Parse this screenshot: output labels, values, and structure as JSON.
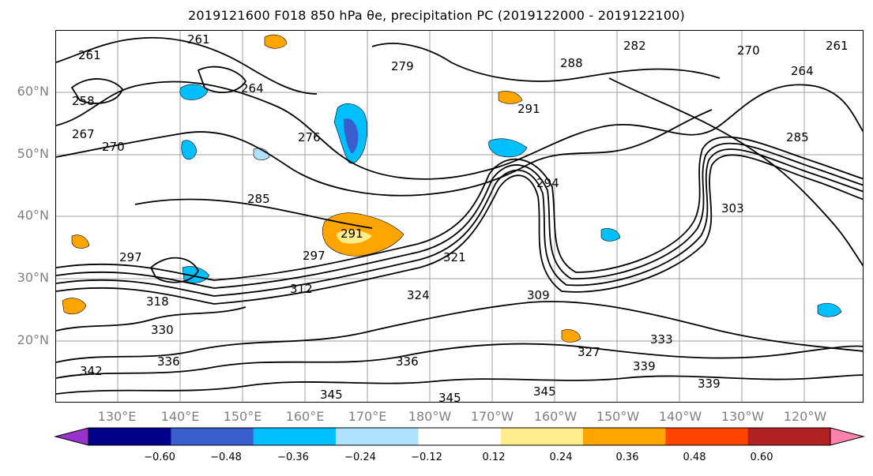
{
  "title": "2019121600 F018 850 hPa θe, precipitation PC (2019122000 - 2019122100)",
  "latitude_labels": [
    "60°N",
    "50°N",
    "40°N",
    "30°N",
    "20°N"
  ],
  "longitude_labels": [
    "130°E",
    "140°E",
    "150°E",
    "160°E",
    "170°E",
    "180°W",
    "170°W",
    "160°W",
    "150°W",
    "140°W",
    "130°W",
    "120°W"
  ],
  "colorbar": {
    "colors": [
      "#9932CC",
      "#00008B",
      "#3A5FCD",
      "#00BFFF",
      "#B0E2FF",
      "#FFFFFF",
      "#FFEC8B",
      "#FFA500",
      "#FF4500",
      "#B22222",
      "#FF82AB"
    ],
    "tick_labels": [
      "−0.60",
      "−0.48",
      "−0.36",
      "−0.24",
      "−0.12",
      "0.12",
      "0.24",
      "0.36",
      "0.48",
      "0.60"
    ]
  },
  "contour_labels": [
    "261",
    "261",
    "267",
    "270",
    "258",
    "264",
    "276",
    "279",
    "282",
    "288",
    "291",
    "294",
    "285",
    "291",
    "297",
    "303",
    "309",
    "312",
    "318",
    "321",
    "324",
    "330",
    "333",
    "336",
    "339",
    "342",
    "345",
    "345",
    "345",
    "270",
    "264",
    "261",
    "285",
    "297",
    "327",
    "336",
    "339"
  ],
  "legend_colors": {
    "frame": "#000000",
    "axis_label": "#808080",
    "gridline": "#a0a0a0"
  }
}
